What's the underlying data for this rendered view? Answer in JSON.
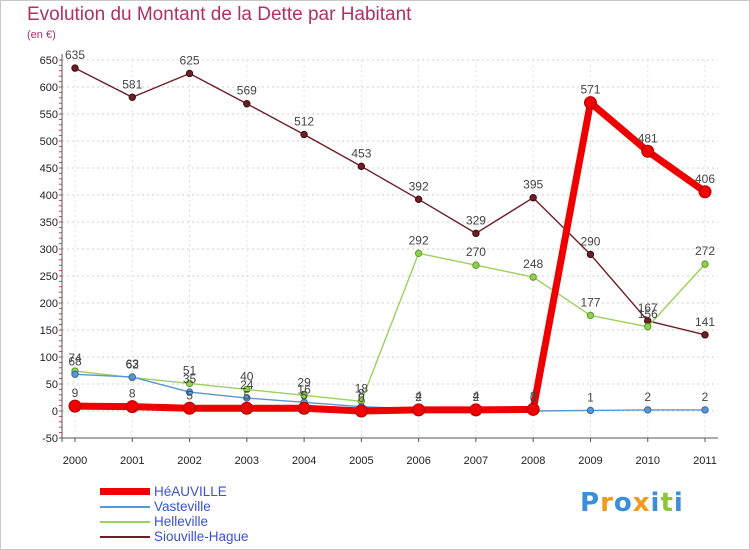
{
  "chart_data": {
    "type": "line",
    "title": "Evolution du Montant de la Dette par Habitant",
    "subtitle": "(en €)",
    "xlabel": "",
    "ylabel": "",
    "categories": [
      "2000",
      "2001",
      "2002",
      "2003",
      "2004",
      "2005",
      "2006",
      "2007",
      "2008",
      "2009",
      "2010",
      "2011"
    ],
    "ylim": [
      -50,
      650
    ],
    "yticks": [
      -50,
      0,
      50,
      100,
      150,
      200,
      250,
      300,
      350,
      400,
      450,
      500,
      550,
      600,
      650
    ],
    "legend_position": "bottom-left",
    "series": [
      {
        "name": "Siouville-Hague",
        "color": "#6e1f26",
        "values": [
          635,
          581,
          625,
          569,
          512,
          453,
          392,
          329,
          395,
          290,
          167,
          141
        ]
      },
      {
        "name": "Helleville",
        "color": "#9ad25c",
        "values": [
          74,
          62,
          51,
          40,
          29,
          18,
          292,
          270,
          248,
          177,
          156,
          272
        ]
      },
      {
        "name": "Vasteville",
        "color": "#5b96d2",
        "values": [
          68,
          63,
          35,
          24,
          16,
          8,
          4,
          4,
          0,
          1,
          2,
          2
        ]
      },
      {
        "name": "HéAUVILLE",
        "color": "#ee0000",
        "values": [
          9,
          8,
          5,
          5,
          5,
          0,
          2,
          2,
          3,
          571,
          481,
          406
        ]
      }
    ],
    "legend_order": [
      "HéAUVILLE",
      "Vasteville",
      "Helleville",
      "Siouville-Hague"
    ]
  },
  "logo": {
    "letters": [
      "P",
      "r",
      "o",
      "x",
      "i",
      "t",
      "i"
    ],
    "colors": [
      "#3a8fd8",
      "#f29a1c",
      "#3a8fd8",
      "#f29a1c",
      "#3a8fd8",
      "#8cc63f",
      "#3a8fd8"
    ]
  }
}
